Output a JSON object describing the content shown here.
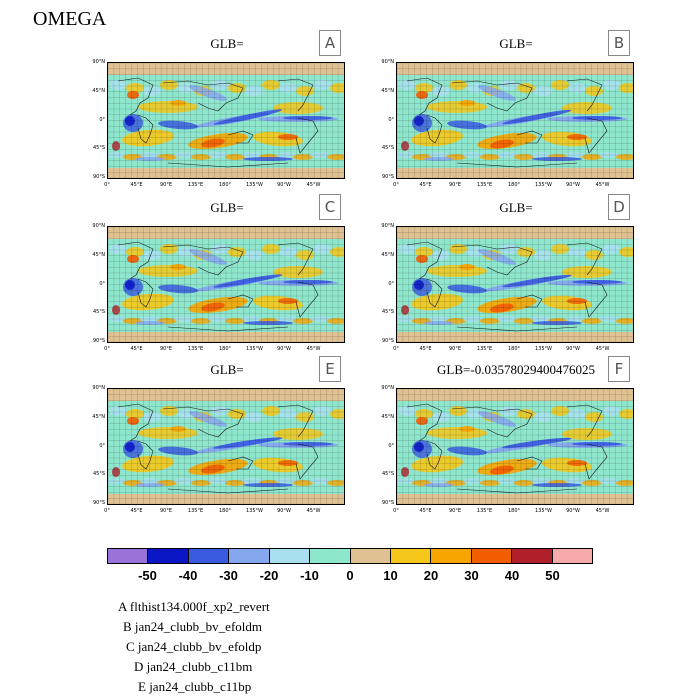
{
  "title": "OMEGA",
  "panels": [
    {
      "id": "A",
      "title": "GLB="
    },
    {
      "id": "B",
      "title": "GLB="
    },
    {
      "id": "C",
      "title": "GLB="
    },
    {
      "id": "D",
      "title": "GLB="
    },
    {
      "id": "E",
      "title": "GLB="
    },
    {
      "id": "F",
      "title": "GLB=-0.0357802940047​6025"
    }
  ],
  "lat_labels": [
    "90°N",
    "45°N",
    "0°",
    "45°S",
    "90°S"
  ],
  "lon_labels": [
    "0°",
    "45°E",
    "90°E",
    "135°E",
    "180°",
    "135°W",
    "90°W",
    "45°W"
  ],
  "colorbar": {
    "colors": [
      "#9b72d8",
      "#0b16c7",
      "#3a5ae0",
      "#85a7ee",
      "#a9e0f0",
      "#8ee6cd",
      "#e0c292",
      "#f5c71a",
      "#f7a400",
      "#f25d00",
      "#b0202a",
      "#f7aaaa"
    ],
    "labels": [
      "-50",
      "-40",
      "-30",
      "-20",
      "-10",
      "0",
      "10",
      "20",
      "30",
      "40",
      "50"
    ]
  },
  "legend": [
    "A  flthist134.000f_xp2_revert",
    "B  jan24_clubb_bv_efoldm",
    "C  jan24_clubb_bv_efoldp",
    "D  jan24_clubb_c11bm",
    "E  jan24_clubb_c11bp"
  ]
}
